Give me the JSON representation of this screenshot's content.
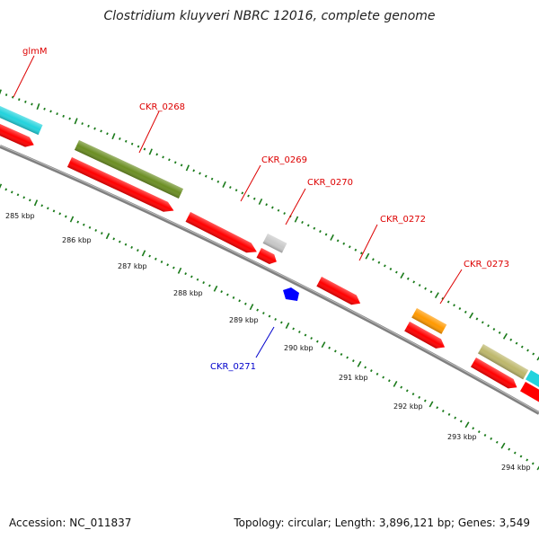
{
  "title": "Clostridium kluyveri NBRC 12016, complete genome",
  "footer": {
    "accession": "Accession: NC_011837",
    "summary": "Topology: circular; Length: 3,896,121 bp; Genes: 3,549"
  },
  "colors": {
    "backbone": "#808080",
    "scale_ticks": "#1a7a1a",
    "label_red": "#dd0000",
    "label_blue": "#0000cc",
    "red_gene": "#ff0000",
    "cyan_gene": "#22d3dd",
    "olive_gene": "#6b8e23",
    "orange_gene": "#ff9900",
    "khaki_gene": "#bdb76b",
    "grey_gene": "#c8c8c8",
    "blue_gene": "#0000ff"
  },
  "genes": [
    {
      "name": "glmM",
      "label_color": "label_red"
    },
    {
      "name": "CKR_0268",
      "label_color": "label_red"
    },
    {
      "name": "CKR_0269",
      "label_color": "label_red"
    },
    {
      "name": "CKR_0270",
      "label_color": "label_red"
    },
    {
      "name": "CKR_0271",
      "label_color": "label_blue"
    },
    {
      "name": "CKR_0272",
      "label_color": "label_red"
    },
    {
      "name": "CKR_0273",
      "label_color": "label_red"
    }
  ],
  "scale": {
    "unit": "kbp",
    "labels": [
      "285 kbp",
      "286 kbp",
      "287 kbp",
      "288 kbp",
      "289 kbp",
      "290 kbp",
      "291 kbp",
      "292 kbp",
      "293 kbp",
      "294 kbp"
    ]
  }
}
